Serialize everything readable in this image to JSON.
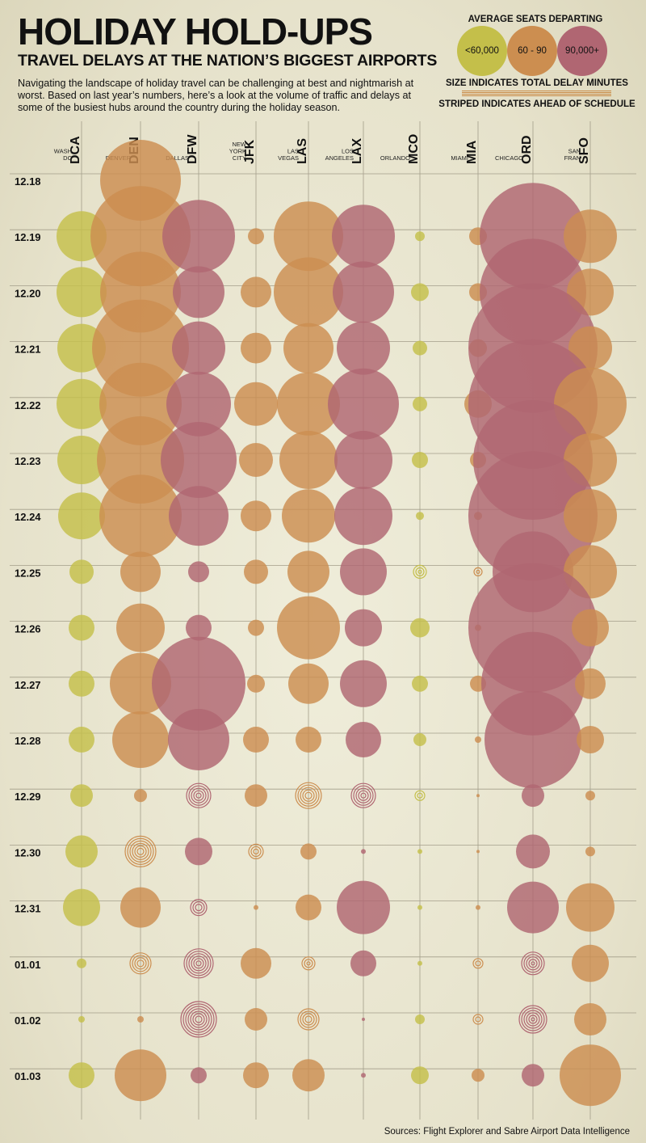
{
  "header": {
    "title": "HOLIDAY HOLD-UPS",
    "subtitle": "TRAVEL DELAYS AT THE NATION’S BIGGEST AIRPORTS",
    "intro": "Navigating the landscape of holiday travel can be challenging at best and nightmarish at worst. Based on last year’s numbers, here’s a look at the volume of traffic and delays at some of the busiest hubs around the country during the holiday season."
  },
  "legend": {
    "title": "AVERAGE SEATS DEPARTING",
    "items": [
      {
        "label": "<60,000",
        "color": "#c4bf4a"
      },
      {
        "label": "60 - 90",
        "color": "#cc8e50"
      },
      {
        "label": "90,000+",
        "color": "#b06672"
      }
    ],
    "size_note": "SIZE INDICATES TOTAL DELAY MINUTES",
    "stripe_note": "STRIPED INDICATES AHEAD OF SCHEDULE"
  },
  "source": "Sources: Flight Explorer and Sabre Airport Data Intelligence",
  "chart_data": {
    "type": "bubble-grid",
    "colors": {
      "small": "#c4bf4a",
      "medium": "#cc8e50",
      "large": "#b06672",
      "grid": "#a39e8a"
    },
    "airports": [
      {
        "code": "DCA",
        "city": [
          "WASH",
          "DC"
        ],
        "tier": "small"
      },
      {
        "code": "DEN",
        "city": [
          "DENVER"
        ],
        "tier": "medium"
      },
      {
        "code": "DFW",
        "city": [
          "DALLAS"
        ],
        "tier": "large"
      },
      {
        "code": "JFK",
        "city": [
          "NEW",
          "YORK",
          "CITY"
        ],
        "tier": "medium"
      },
      {
        "code": "LAS",
        "city": [
          "LAS",
          "VEGAS"
        ],
        "tier": "medium"
      },
      {
        "code": "LAX",
        "city": [
          "LOS",
          "ANGELES"
        ],
        "tier": "large"
      },
      {
        "code": "MCO",
        "city": [
          "ORLANDO"
        ],
        "tier": "small"
      },
      {
        "code": "MIA",
        "city": [
          "MIAMI"
        ],
        "tier": "medium"
      },
      {
        "code": "ORD",
        "city": [
          "CHICAGO"
        ],
        "tier": "large"
      },
      {
        "code": "SFO",
        "city": [
          "SAN",
          "FRAN"
        ],
        "tier": "medium"
      }
    ],
    "dates": [
      "12.18",
      "12.19",
      "12.20",
      "12.21",
      "12.22",
      "12.23",
      "12.24",
      "12.25",
      "12.26",
      "12.27",
      "12.28",
      "12.29",
      "12.30",
      "12.31",
      "01.01",
      "01.02",
      "01.03"
    ],
    "delay_size": [
      [
        0,
        5,
        0,
        0,
        0,
        0,
        0,
        0,
        0,
        0
      ],
      [
        3.1,
        6.2,
        4.5,
        1.0,
        4.3,
        3.9,
        0.6,
        1.1,
        6.6,
        3.3
      ],
      [
        3.1,
        5.0,
        3.2,
        1.9,
        4.3,
        3.8,
        1.1,
        1.1,
        6.6,
        2.9
      ],
      [
        3.0,
        6.0,
        3.3,
        1.9,
        3.1,
        3.3,
        0.9,
        1.1,
        8.0,
        2.7
      ],
      [
        3.1,
        5.1,
        4.0,
        2.7,
        3.9,
        4.4,
        0.9,
        1.7,
        8.0,
        4.5
      ],
      [
        3.0,
        5.4,
        4.7,
        2.1,
        3.6,
        3.6,
        1.0,
        1.0,
        7.4,
        3.3
      ],
      [
        2.9,
        5.1,
        3.7,
        1.9,
        3.3,
        3.6,
        0.5,
        0.5,
        8.0,
        3.3
      ],
      [
        1.5,
        2.5,
        1.3,
        1.5,
        2.6,
        2.9,
        0.8,
        0.5,
        5.0,
        3.3
      ],
      [
        1.6,
        3.0,
        1.6,
        1.0,
        3.9,
        2.3,
        1.2,
        0.4,
        8.0,
        2.3
      ],
      [
        1.6,
        3.8,
        5.8,
        1.1,
        2.5,
        2.9,
        1.0,
        1.0,
        6.4,
        1.9
      ],
      [
        1.6,
        3.5,
        3.8,
        1.6,
        1.6,
        2.2,
        0.8,
        0.4,
        6.0,
        1.7
      ],
      [
        1.4,
        0.8,
        1.5,
        1.4,
        1.6,
        1.5,
        0.6,
        0.2,
        1.4,
        0.6
      ],
      [
        2.0,
        1.9,
        1.7,
        0.9,
        1.0,
        0.3,
        0.3,
        0.2,
        2.1,
        0.6
      ],
      [
        2.3,
        2.5,
        1.0,
        0.3,
        1.6,
        3.3,
        0.3,
        0.3,
        3.2,
        3.0
      ],
      [
        0.6,
        1.3,
        1.8,
        1.9,
        0.8,
        1.6,
        0.3,
        0.6,
        1.4,
        2.3
      ],
      [
        0.4,
        0.4,
        2.2,
        1.4,
        1.3,
        0.2,
        0.6,
        0.6,
        1.7,
        2.0
      ],
      [
        1.6,
        3.2,
        1.0,
        1.6,
        2.0,
        0.3,
        1.1,
        0.8,
        1.4,
        3.8
      ]
    ],
    "striped": [
      [
        false,
        false,
        false,
        false,
        false,
        false,
        false,
        false,
        false,
        false
      ],
      [
        false,
        false,
        false,
        false,
        false,
        false,
        false,
        false,
        false,
        false
      ],
      [
        false,
        false,
        false,
        false,
        false,
        false,
        false,
        false,
        false,
        false
      ],
      [
        false,
        false,
        false,
        false,
        false,
        false,
        false,
        false,
        false,
        false
      ],
      [
        false,
        false,
        false,
        false,
        false,
        false,
        false,
        false,
        false,
        false
      ],
      [
        false,
        false,
        false,
        false,
        false,
        false,
        false,
        false,
        false,
        false
      ],
      [
        false,
        false,
        false,
        false,
        false,
        false,
        false,
        false,
        false,
        false
      ],
      [
        false,
        false,
        false,
        false,
        false,
        false,
        true,
        true,
        false,
        false
      ],
      [
        false,
        false,
        false,
        false,
        false,
        false,
        false,
        false,
        false,
        false
      ],
      [
        false,
        false,
        false,
        false,
        false,
        false,
        false,
        false,
        false,
        false
      ],
      [
        false,
        false,
        false,
        false,
        false,
        false,
        false,
        false,
        false,
        false
      ],
      [
        false,
        false,
        true,
        false,
        true,
        true,
        true,
        false,
        false,
        false
      ],
      [
        false,
        true,
        false,
        true,
        false,
        false,
        false,
        false,
        false,
        false
      ],
      [
        false,
        false,
        true,
        false,
        false,
        false,
        false,
        false,
        false,
        false
      ],
      [
        false,
        true,
        true,
        false,
        true,
        false,
        false,
        true,
        true,
        false
      ],
      [
        false,
        false,
        true,
        false,
        true,
        false,
        false,
        true,
        true,
        false
      ],
      [
        false,
        false,
        false,
        false,
        false,
        false,
        false,
        false,
        false,
        false
      ]
    ]
  }
}
